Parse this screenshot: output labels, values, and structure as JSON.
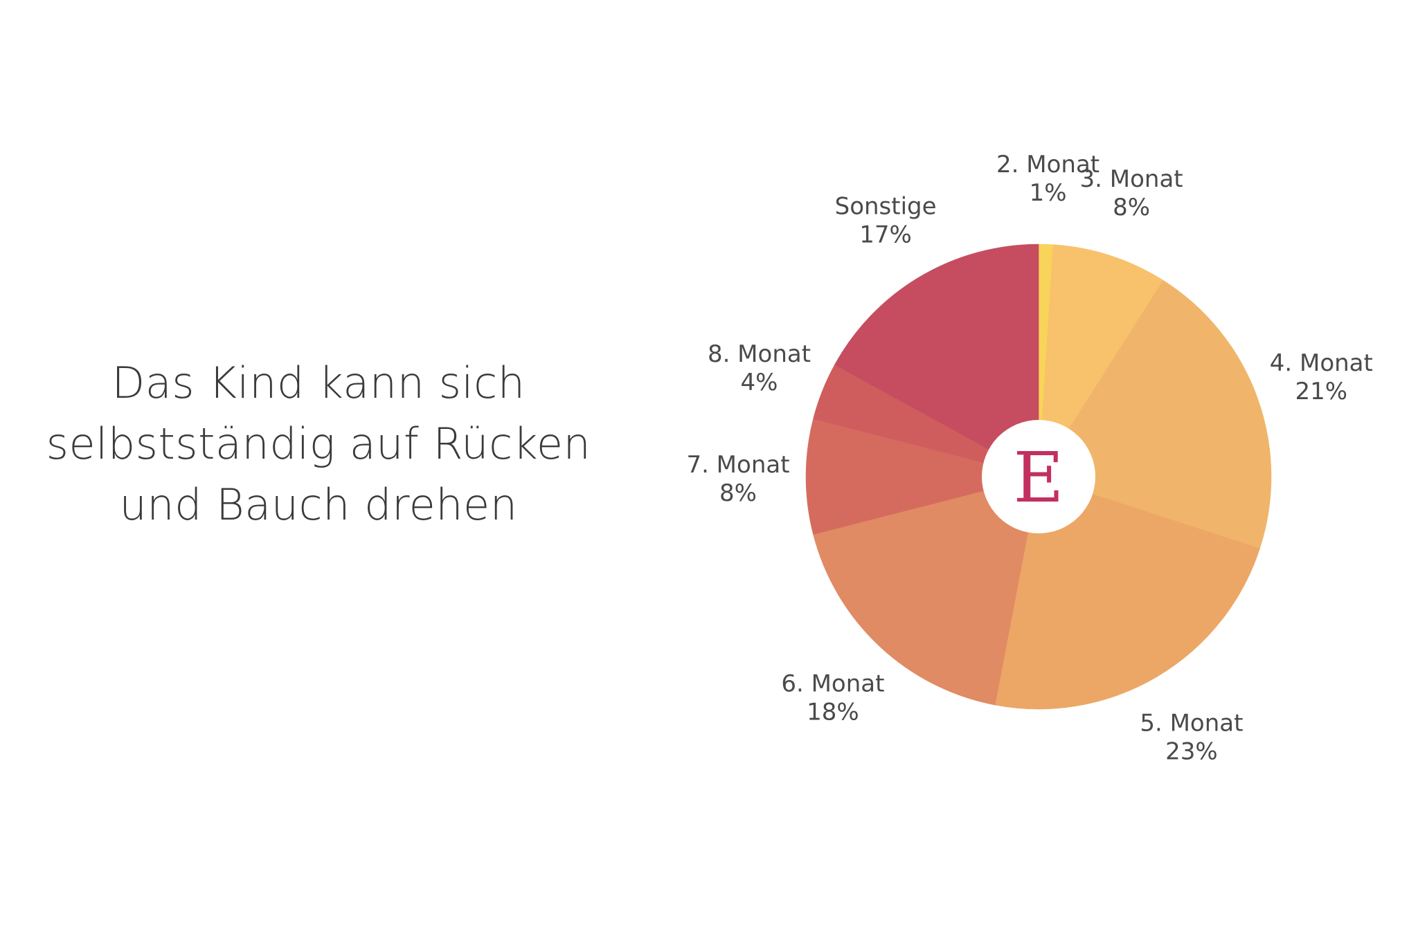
{
  "title_lines": [
    "Das Kind kann sich",
    "selbstständig auf Rücken",
    "und Bauch drehen"
  ],
  "logo": {
    "letter": "E",
    "color": "#c2305f"
  },
  "chart_data": {
    "type": "pie",
    "title": "Das Kind kann sich selbstständig auf Rücken und Bauch drehen",
    "unit": "%",
    "start_angle_deg": 0,
    "direction": "clockwise",
    "slices": [
      {
        "label": "2. Monat",
        "value": 1,
        "display": "1%",
        "color": "#f8d45a"
      },
      {
        "label": "3. Monat",
        "value": 8,
        "display": "8%",
        "color": "#f7c26b"
      },
      {
        "label": "4. Monat",
        "value": 21,
        "display": "21%",
        "color": "#f0b56a"
      },
      {
        "label": "5. Monat",
        "value": 23,
        "display": "23%",
        "color": "#eca766"
      },
      {
        "label": "6. Monat",
        "value": 18,
        "display": "18%",
        "color": "#e08b63"
      },
      {
        "label": "7. Monat",
        "value": 8,
        "display": "8%",
        "color": "#d56b5f"
      },
      {
        "label": "8. Monat",
        "value": 4,
        "display": "4%",
        "color": "#cf5d5e"
      },
      {
        "label": "Sonstige",
        "value": 17,
        "display": "17%",
        "color": "#c54d5f"
      }
    ]
  }
}
